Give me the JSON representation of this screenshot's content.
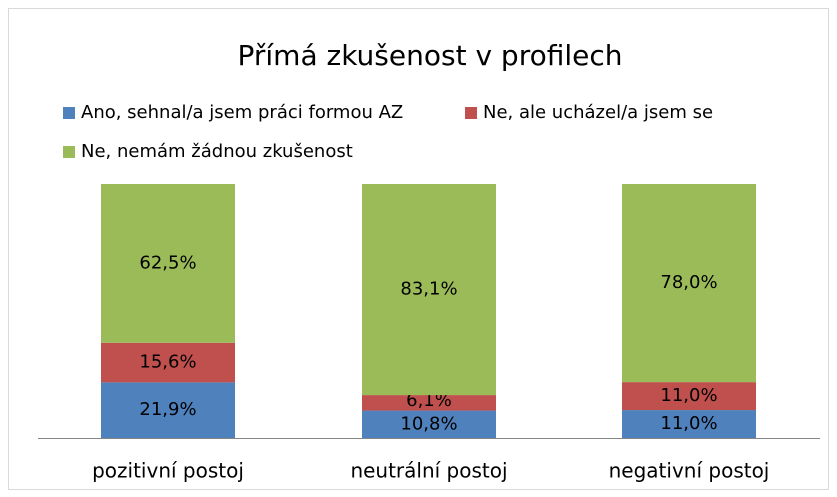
{
  "chart_data": {
    "type": "stacked_bar",
    "title": "Přímá zkušenost v profilech",
    "categories": [
      "pozitivní postoj",
      "neutrální postoj",
      "negativní postoj"
    ],
    "series": [
      {
        "name": "Ano, sehnal/a jsem práci formou AZ",
        "color": "#4f81bd",
        "values": [
          21.9,
          10.8,
          11.0
        ],
        "value_labels": [
          "21,9%",
          "10,8%",
          "11,0%"
        ]
      },
      {
        "name": "Ne, ale ucházel/a jsem se",
        "color": "#c0504d",
        "values": [
          15.6,
          6.1,
          11.0
        ],
        "value_labels": [
          "15,6%",
          "6,1%",
          "11,0%"
        ]
      },
      {
        "name": "Ne, nemám žádnou zkušenost",
        "color": "#9bbb59",
        "values": [
          62.5,
          83.1,
          78.0
        ],
        "value_labels": [
          "62,5%",
          "83,1%",
          "78,0%"
        ]
      }
    ],
    "ylim": [
      0,
      100
    ]
  }
}
